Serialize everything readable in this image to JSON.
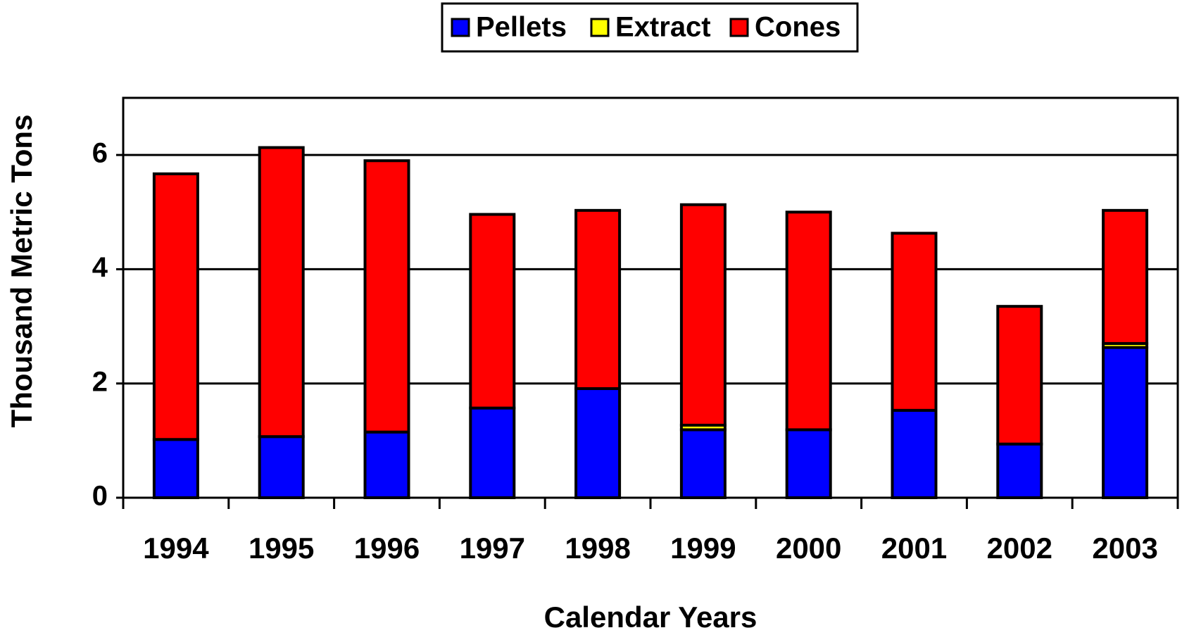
{
  "chart_data": {
    "type": "stacked_bar",
    "x_label": "Calendar Years",
    "y_label": "Thousand Metric Tons",
    "categories": [
      "1994",
      "1995",
      "1996",
      "1997",
      "1998",
      "1999",
      "2000",
      "2001",
      "2002",
      "2003"
    ],
    "series": [
      {
        "name": "Pellets",
        "color": "#0000ff",
        "values": [
          1.02,
          1.07,
          1.15,
          1.57,
          1.91,
          1.19,
          1.19,
          1.53,
          0.94,
          2.63
        ]
      },
      {
        "name": "Extract",
        "color": "#ffff00",
        "values": [
          0,
          0,
          0,
          0,
          0,
          0.08,
          0,
          0,
          0,
          0.07
        ]
      },
      {
        "name": "Cones",
        "color": "#ff0000",
        "values": [
          4.65,
          5.06,
          4.75,
          3.39,
          3.12,
          3.86,
          3.81,
          3.1,
          2.41,
          2.33
        ]
      }
    ],
    "ylim": [
      0,
      7
    ],
    "yticks": [
      0,
      2,
      4,
      6
    ],
    "grid": true,
    "legend": "top"
  }
}
